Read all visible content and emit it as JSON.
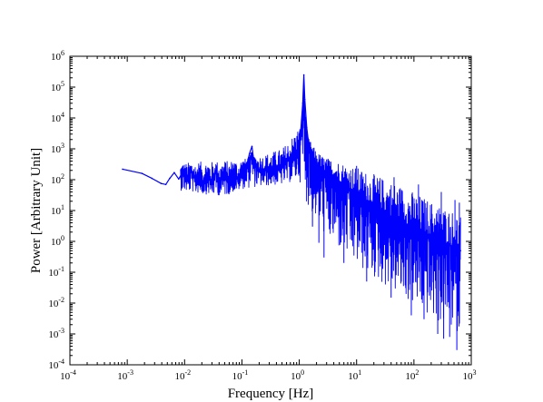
{
  "chart_data": {
    "type": "line",
    "xlabel": "Frequency [Hz]",
    "ylabel": "Power [Arbitrary Unit]",
    "xscale": "log",
    "yscale": "log",
    "xlim": [
      0.0001,
      1000
    ],
    "ylim": [
      0.0001,
      1000000
    ],
    "grid": false,
    "legend": "none",
    "x_ticks": [
      {
        "base": "10",
        "exp": "-4",
        "value": 0.0001
      },
      {
        "base": "10",
        "exp": "-3",
        "value": 0.001
      },
      {
        "base": "10",
        "exp": "-2",
        "value": 0.01
      },
      {
        "base": "10",
        "exp": "-1",
        "value": 0.1
      },
      {
        "base": "10",
        "exp": "0",
        "value": 1
      },
      {
        "base": "10",
        "exp": "1",
        "value": 10
      },
      {
        "base": "10",
        "exp": "2",
        "value": 100
      },
      {
        "base": "10",
        "exp": "3",
        "value": 1000
      }
    ],
    "y_ticks": [
      {
        "base": "10",
        "exp": "-4",
        "value": 0.0001
      },
      {
        "base": "10",
        "exp": "-3",
        "value": 0.001
      },
      {
        "base": "10",
        "exp": "-2",
        "value": 0.01
      },
      {
        "base": "10",
        "exp": "-1",
        "value": 0.1
      },
      {
        "base": "10",
        "exp": "0",
        "value": 1
      },
      {
        "base": "10",
        "exp": "1",
        "value": 10
      },
      {
        "base": "10",
        "exp": "2",
        "value": 100
      },
      {
        "base": "10",
        "exp": "3",
        "value": 1000
      },
      {
        "base": "10",
        "exp": "4",
        "value": 10000
      },
      {
        "base": "10",
        "exp": "5",
        "value": 100000
      },
      {
        "base": "10",
        "exp": "6",
        "value": 1000000
      }
    ],
    "series": [
      {
        "color": "#0000ff",
        "points": [
          [
            0.00083,
            220
          ],
          [
            0.0018,
            160
          ],
          [
            0.0027,
            110
          ],
          [
            0.0039,
            75
          ],
          [
            0.0047,
            70
          ],
          [
            0.0055,
            110
          ],
          [
            0.0066,
            170
          ],
          [
            0.0079,
            105
          ],
          [
            0.0093,
            180
          ],
          [
            0.011,
            95
          ],
          [
            0.013,
            200
          ],
          [
            0.0155,
            90
          ],
          [
            0.018,
            150
          ],
          [
            0.021,
            85
          ],
          [
            0.025,
            160
          ],
          [
            0.03,
            80
          ],
          [
            0.035,
            200
          ],
          [
            0.042,
            85
          ],
          [
            0.05,
            190
          ],
          [
            0.06,
            95
          ],
          [
            0.07,
            230
          ],
          [
            0.085,
            100
          ],
          [
            0.1,
            220
          ],
          [
            0.12,
            260
          ],
          [
            0.135,
            700
          ],
          [
            0.15,
            1200
          ],
          [
            0.16,
            450
          ],
          [
            0.19,
            230
          ],
          [
            0.25,
            200
          ],
          [
            0.35,
            230
          ],
          [
            0.5,
            300
          ],
          [
            0.7,
            450
          ],
          [
            0.9,
            900
          ],
          [
            1.05,
            3000
          ],
          [
            1.15,
            30000
          ],
          [
            1.2,
            250000
          ],
          [
            1.25,
            40000
          ],
          [
            1.35,
            5000
          ],
          [
            1.5,
            900
          ],
          [
            1.8,
            400
          ],
          [
            2.5,
            200
          ],
          [
            4,
            120
          ],
          [
            6,
            70
          ],
          [
            10,
            35
          ],
          [
            20,
            14
          ],
          [
            50,
            5
          ],
          [
            100,
            2.8
          ],
          [
            200,
            1.5
          ],
          [
            400,
            0.8
          ],
          [
            650,
            0.5
          ]
        ],
        "noise_lower": [
          [
            0.0085,
            45
          ],
          [
            0.02,
            35
          ],
          [
            0.05,
            30
          ],
          [
            0.1,
            50
          ],
          [
            0.2,
            60
          ],
          [
            0.5,
            70
          ],
          [
            1,
            100
          ],
          [
            1.5,
            10
          ],
          [
            2,
            5
          ],
          [
            3,
            1.2
          ],
          [
            5,
            0.5
          ],
          [
            10,
            0.15
          ],
          [
            20,
            0.06
          ],
          [
            50,
            0.02
          ],
          [
            100,
            0.008
          ],
          [
            200,
            0.003
          ],
          [
            400,
            0.0015
          ],
          [
            650,
            0.001
          ]
        ],
        "noise_upper": [
          [
            0.0085,
            350
          ],
          [
            0.02,
            380
          ],
          [
            0.05,
            400
          ],
          [
            0.1,
            450
          ],
          [
            0.2,
            600
          ],
          [
            0.5,
            1000
          ],
          [
            1,
            5000
          ],
          [
            1.5,
            2000
          ],
          [
            2,
            800
          ],
          [
            3,
            500
          ],
          [
            5,
            400
          ],
          [
            10,
            250
          ],
          [
            20,
            150
          ],
          [
            50,
            80
          ],
          [
            100,
            40
          ],
          [
            200,
            20
          ],
          [
            400,
            12
          ],
          [
            650,
            8
          ]
        ],
        "min_points": [
          [
            1.7,
            3
          ],
          [
            2.2,
            0.9
          ],
          [
            2.7,
            0.3
          ],
          [
            6,
            0.2
          ],
          [
            15,
            0.05
          ],
          [
            40,
            0.015
          ],
          [
            90,
            0.004
          ],
          [
            150,
            0.003
          ],
          [
            260,
            0.001
          ],
          [
            330,
            0.0007
          ],
          [
            420,
            0.0008
          ],
          [
            560,
            0.0003
          ]
        ],
        "max_points": [
          [
            1.6,
            500
          ],
          [
            3,
            450
          ],
          [
            10,
            280
          ],
          [
            45,
            120
          ],
          [
            120,
            70
          ],
          [
            300,
            40
          ],
          [
            520,
            22
          ],
          [
            620,
            18
          ]
        ]
      }
    ]
  }
}
